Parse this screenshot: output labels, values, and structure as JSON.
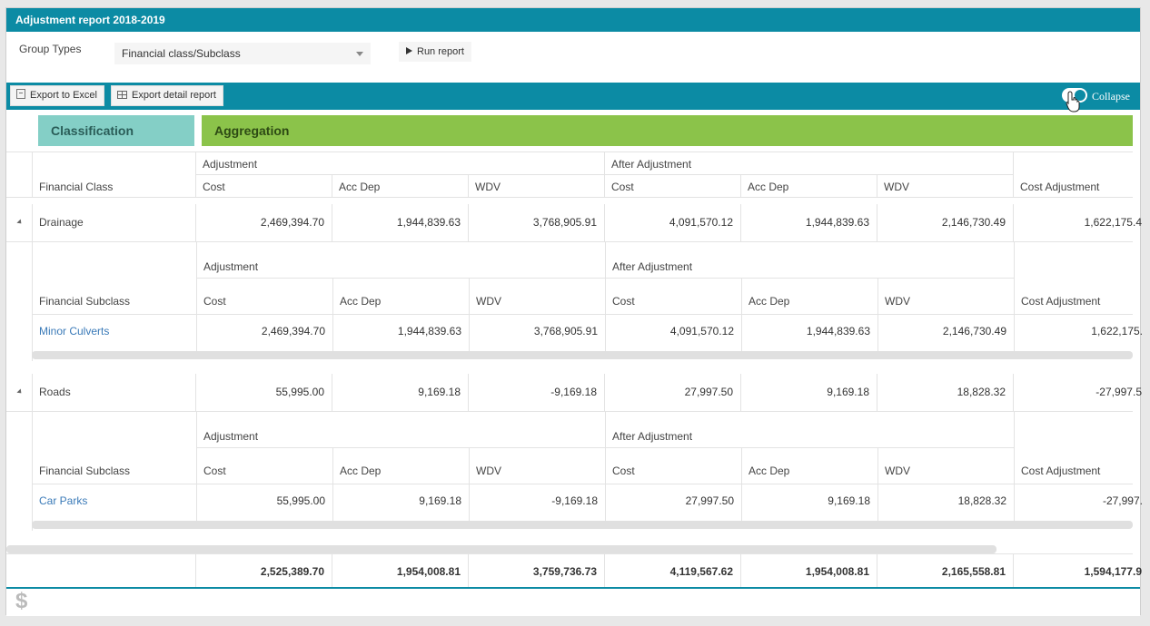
{
  "window": {
    "title": "Adjustment report 2018-2019"
  },
  "filters": {
    "group_types_label": "Group Types",
    "group_types_value": "Financial class/Subclass",
    "run_label": "Run report"
  },
  "toolbar": {
    "export_excel": "Export to Excel",
    "export_detail": "Export detail report",
    "collapse_label": "Collapse",
    "collapse_on": true
  },
  "bands": {
    "classification": "Classification",
    "aggregation": "Aggregation"
  },
  "headers": {
    "adjustment": "Adjustment",
    "after_adjustment": "After Adjustment",
    "cost": "Cost",
    "acc_dep": "Acc Dep",
    "wdv": "WDV",
    "cost_adjustment": "Cost Adjustment",
    "financial_class": "Financial Class",
    "financial_subclass": "Financial Subclass"
  },
  "groups": [
    {
      "name": "Drainage",
      "values": [
        "2,469,394.70",
        "1,944,839.63",
        "3,768,905.91",
        "4,091,570.12",
        "1,944,839.63",
        "2,146,730.49",
        "1,622,175.4"
      ],
      "sub": {
        "name": "Minor Culverts",
        "values": [
          "2,469,394.70",
          "1,944,839.63",
          "3,768,905.91",
          "4,091,570.12",
          "1,944,839.63",
          "2,146,730.49",
          "1,622,175."
        ]
      }
    },
    {
      "name": "Roads",
      "values": [
        "55,995.00",
        "9,169.18",
        "-9,169.18",
        "27,997.50",
        "9,169.18",
        "18,828.32",
        "-27,997.5"
      ],
      "sub": {
        "name": "Car Parks",
        "values": [
          "55,995.00",
          "9,169.18",
          "-9,169.18",
          "27,997.50",
          "9,169.18",
          "18,828.32",
          "-27,997."
        ]
      }
    }
  ],
  "totals": [
    "2,525,389.70",
    "1,954,008.81",
    "3,759,736.73",
    "4,119,567.62",
    "1,954,008.81",
    "2,165,558.81",
    "1,594,177.9"
  ],
  "footer": {
    "currency_icon": "dollar-icon",
    "currency_symbol": "$"
  },
  "colors": {
    "accent": "#0c8ba4",
    "classification": "#84cfc6",
    "aggregation": "#8bc34a",
    "link": "#3a7ab8"
  }
}
